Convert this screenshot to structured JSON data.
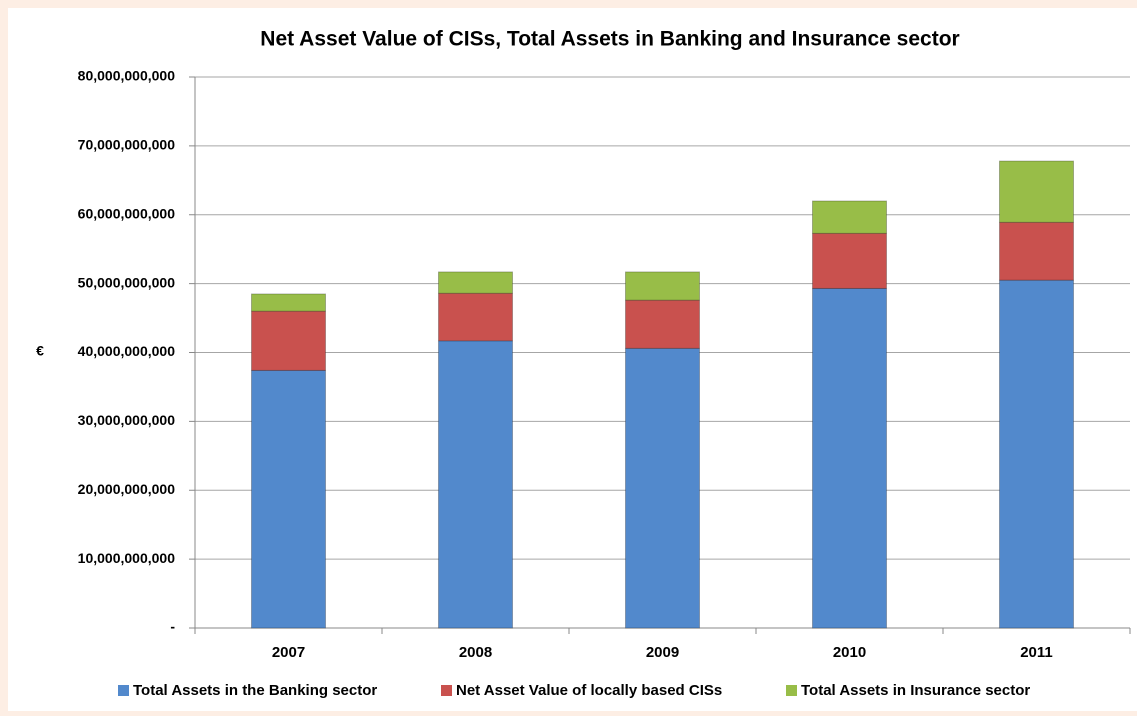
{
  "chart_data": {
    "type": "stacked_bar",
    "title": "Net Asset Value of CISs, Total Assets in Banking and Insurance sector",
    "y_label": "€",
    "categories": [
      "2007",
      "2008",
      "2009",
      "2010",
      "2011"
    ],
    "series": [
      {
        "name": "Total Assets in the Banking sector",
        "color": "#5289cc",
        "values": [
          37400000000,
          41700000000,
          40600000000,
          49300000000,
          50500000000
        ]
      },
      {
        "name": "Net Asset Value of locally based CISs",
        "color": "#c9514e",
        "values": [
          8600000000,
          6900000000,
          7000000000,
          8000000000,
          8400000000
        ]
      },
      {
        "name": "Total Assets in Insurance sector",
        "color": "#98bd48",
        "values": [
          2500000000,
          3100000000,
          4100000000,
          4700000000,
          8900000000
        ]
      }
    ],
    "ylim": [
      0,
      80000000000
    ],
    "yticks": [
      {
        "value": 0,
        "label": "-"
      },
      {
        "value": 10000000000,
        "label": "10,000,000,000"
      },
      {
        "value": 20000000000,
        "label": "20,000,000,000"
      },
      {
        "value": 30000000000,
        "label": "30,000,000,000"
      },
      {
        "value": 40000000000,
        "label": "40,000,000,000"
      },
      {
        "value": 50000000000,
        "label": "50,000,000,000"
      },
      {
        "value": 60000000000,
        "label": "60,000,000,000"
      },
      {
        "value": 70000000000,
        "label": "70,000,000,000"
      },
      {
        "value": 80000000000,
        "label": "80,000,000,000"
      }
    ],
    "grid": true,
    "legend": "bottom"
  }
}
